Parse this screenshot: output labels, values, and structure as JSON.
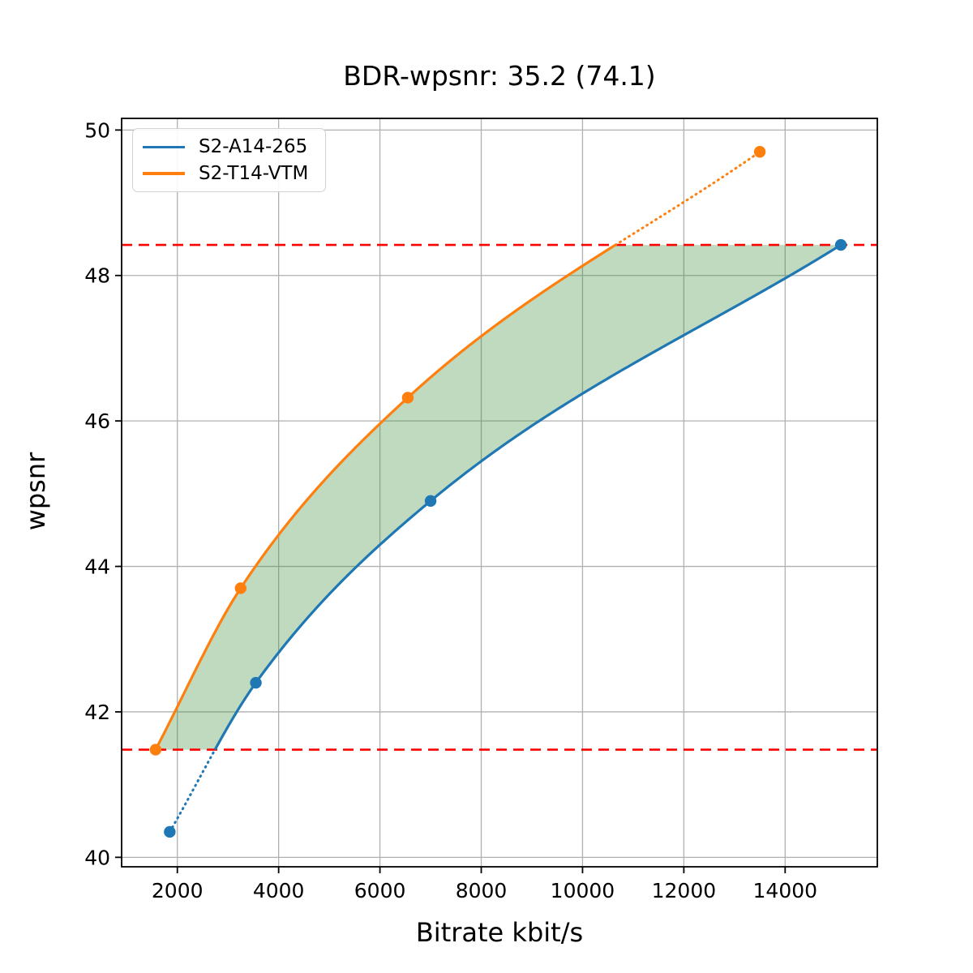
{
  "title": "BDR-wpsnr: 35.2 (74.1)",
  "legend": {
    "entries": [
      {
        "label": "S2-A14-265",
        "color": "#1f77b4"
      },
      {
        "label": "S2-T14-VTM",
        "color": "#ff7f0e"
      }
    ]
  },
  "chart_data": {
    "type": "line",
    "title": "BDR-wpsnr: 35.2 (74.1)",
    "xlabel": "Bitrate kbit/s",
    "ylabel": "wpsnr",
    "xlim": [
      900,
      15820
    ],
    "ylim": [
      39.87,
      50.16
    ],
    "xticks": [
      2000,
      4000,
      6000,
      8000,
      10000,
      12000,
      14000
    ],
    "yticks": [
      40,
      42,
      44,
      46,
      48,
      50
    ],
    "grid": true,
    "grid_color": "#b0b0b0",
    "legend_position": "upper-left",
    "series": [
      {
        "name": "S2-A14-265",
        "color": "#1f77b4",
        "x": [
          1850,
          3550,
          7000,
          15100
        ],
        "y": [
          40.35,
          42.4,
          44.9,
          48.42
        ]
      },
      {
        "name": "S2-T14-VTM",
        "color": "#ff7f0e",
        "x": [
          1570,
          3250,
          6550,
          13500
        ],
        "y": [
          41.48,
          43.7,
          46.32,
          49.7
        ]
      }
    ],
    "hlines": {
      "values": [
        41.48,
        48.42
      ],
      "color": "#ff0000",
      "style": "dashed"
    },
    "fill_between": {
      "color": "rgba(60,140,60,0.32)"
    }
  }
}
